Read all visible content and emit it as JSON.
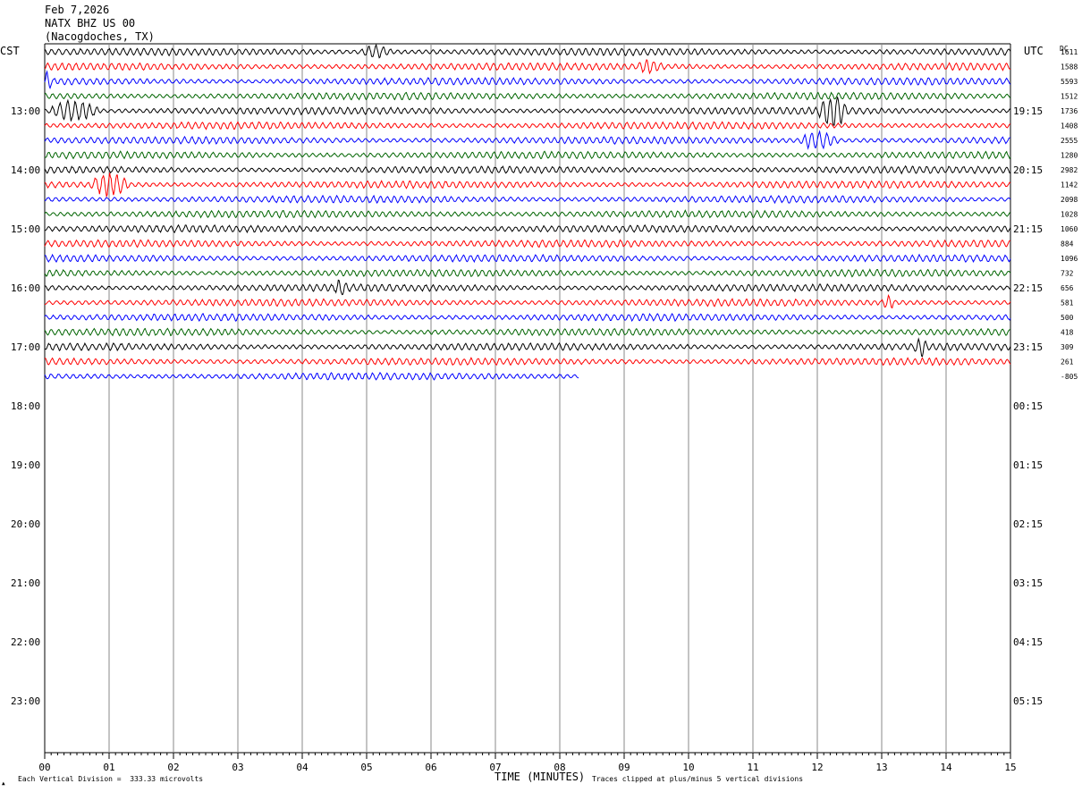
{
  "header": {
    "date": "Feb 7,2026",
    "station": "NATX BHZ US 00",
    "location": "(Nacogdoches, TX)"
  },
  "left_tz": "CST",
  "right_tz": "UTC",
  "dc_label": "DC",
  "colors": {
    "black": "#000000",
    "red": "#ff0000",
    "blue": "#0000ff",
    "green": "#006400",
    "grid": "#888888"
  },
  "chart_data": {
    "type": "line",
    "xlabel": "TIME (MINUTES)",
    "x_ticks": [
      "00",
      "01",
      "02",
      "03",
      "04",
      "05",
      "06",
      "07",
      "08",
      "09",
      "10",
      "11",
      "12",
      "13",
      "14",
      "15"
    ],
    "xlim": [
      0,
      15
    ],
    "left_hour_labels": [
      "13:00",
      "14:00",
      "15:00",
      "16:00",
      "17:00",
      "18:00",
      "19:00",
      "20:00",
      "21:00",
      "22:00",
      "23:00"
    ],
    "right_hour_labels": [
      "19:15",
      "20:15",
      "21:15",
      "22:15",
      "23:15",
      "00:15",
      "01:15",
      "02:15",
      "03:15",
      "04:15",
      "05:15"
    ],
    "trace_colors": [
      "black",
      "red",
      "blue",
      "green"
    ],
    "dc_offsets": [
      "1611",
      "1588",
      "5593",
      "1512",
      "1736",
      "1408",
      "2555",
      "1280",
      "2982",
      "1142",
      "2098",
      "1028",
      "1060",
      "884",
      "1096",
      "732",
      "656",
      "581",
      "500",
      "418",
      "309",
      "261",
      "-805"
    ],
    "traces_drawn": 23,
    "last_trace_end_minute": 8.3,
    "events": [
      {
        "trace": 2,
        "start": 0.0,
        "end": 0.15,
        "amp": 2.2
      },
      {
        "trace": 4,
        "start": 0.05,
        "end": 1.2,
        "amp": 4.5
      },
      {
        "trace": 0,
        "start": 4.9,
        "end": 5.6,
        "amp": 2.6
      },
      {
        "trace": 1,
        "start": 9.2,
        "end": 9.8,
        "amp": 1.6
      },
      {
        "trace": 4,
        "start": 12.0,
        "end": 12.7,
        "amp": 4.0
      },
      {
        "trace": 6,
        "start": 11.7,
        "end": 12.6,
        "amp": 4.0
      },
      {
        "trace": 9,
        "start": 0.7,
        "end": 1.6,
        "amp": 4.2
      },
      {
        "trace": 16,
        "start": 4.5,
        "end": 4.8,
        "amp": 1.8
      },
      {
        "trace": 17,
        "start": 13.0,
        "end": 13.3,
        "amp": 2.0
      },
      {
        "trace": 20,
        "start": 13.5,
        "end": 13.8,
        "amp": 2.0
      }
    ]
  },
  "footer": {
    "division_text": "Each Vertical Division =  333.33 microvolts",
    "clip_text": "Traces clipped at plus/minus 5 vertical divisions",
    "corner_mark": "▲"
  }
}
